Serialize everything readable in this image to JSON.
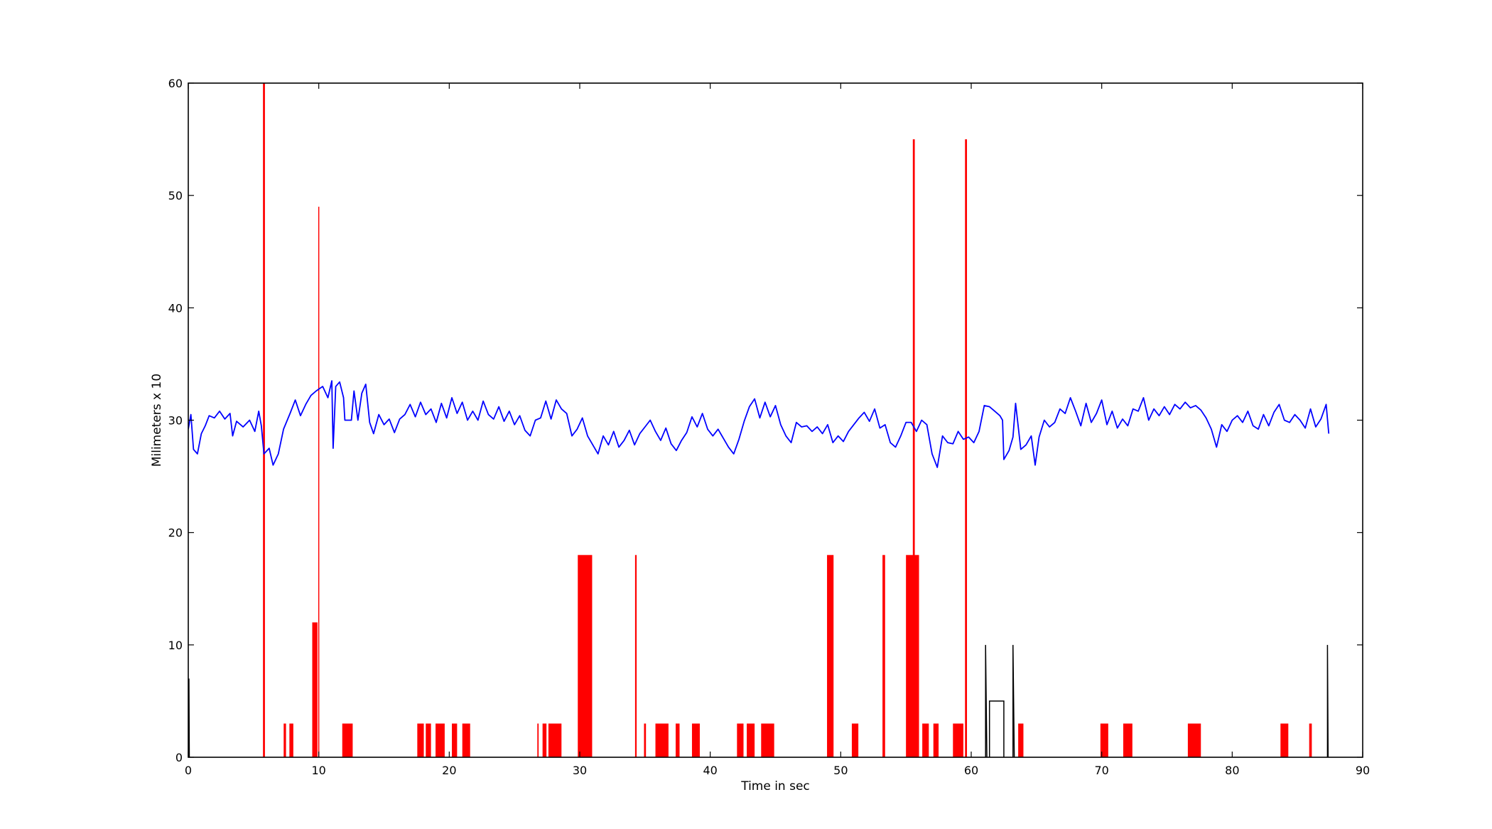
{
  "chart_data": {
    "type": "line",
    "title": "",
    "xlabel": "Time in sec",
    "ylabel": "Milimeters x 10",
    "xlim": [
      0,
      90
    ],
    "ylim": [
      0,
      60
    ],
    "xticks": [
      0,
      10,
      20,
      30,
      40,
      50,
      60,
      70,
      80,
      90
    ],
    "yticks": [
      0,
      10,
      20,
      30,
      40,
      50,
      60
    ],
    "grid": false,
    "legend": "none",
    "colors": {
      "line": "#0000ff",
      "bars": "#ff0000",
      "markers": "#000000"
    },
    "series": [
      {
        "type": "line",
        "color": "#0000ff",
        "points": [
          [
            0.0,
            29.2
          ],
          [
            0.2,
            30.5
          ],
          [
            0.4,
            27.4
          ],
          [
            0.7,
            27.0
          ],
          [
            1.0,
            28.8
          ],
          [
            1.3,
            29.5
          ],
          [
            1.6,
            30.4
          ],
          [
            2.0,
            30.2
          ],
          [
            2.4,
            30.8
          ],
          [
            2.8,
            30.1
          ],
          [
            3.2,
            30.6
          ],
          [
            3.4,
            28.6
          ],
          [
            3.7,
            29.9
          ],
          [
            4.2,
            29.4
          ],
          [
            4.7,
            30.0
          ],
          [
            5.1,
            29.0
          ],
          [
            5.4,
            30.8
          ],
          [
            5.6,
            29.5
          ],
          [
            5.8,
            27.0
          ],
          [
            6.2,
            27.5
          ],
          [
            6.5,
            26.0
          ],
          [
            6.9,
            27.0
          ],
          [
            7.3,
            29.2
          ],
          [
            7.8,
            30.6
          ],
          [
            8.2,
            31.8
          ],
          [
            8.6,
            30.4
          ],
          [
            9.0,
            31.4
          ],
          [
            9.4,
            32.2
          ],
          [
            9.8,
            32.6
          ],
          [
            10.3,
            33.0
          ],
          [
            10.7,
            32.0
          ],
          [
            11.0,
            33.5
          ],
          [
            11.1,
            27.5
          ],
          [
            11.3,
            33.0
          ],
          [
            11.6,
            33.4
          ],
          [
            11.9,
            32.0
          ],
          [
            12.0,
            30.0
          ],
          [
            12.5,
            30.0
          ],
          [
            12.7,
            32.6
          ],
          [
            13.0,
            30.0
          ],
          [
            13.3,
            32.4
          ],
          [
            13.6,
            33.2
          ],
          [
            13.9,
            29.8
          ],
          [
            14.2,
            28.8
          ],
          [
            14.6,
            30.5
          ],
          [
            15.0,
            29.6
          ],
          [
            15.4,
            30.1
          ],
          [
            15.8,
            28.9
          ],
          [
            16.2,
            30.1
          ],
          [
            16.6,
            30.5
          ],
          [
            17.0,
            31.4
          ],
          [
            17.4,
            30.3
          ],
          [
            17.8,
            31.6
          ],
          [
            18.2,
            30.5
          ],
          [
            18.6,
            31.0
          ],
          [
            19.0,
            29.8
          ],
          [
            19.4,
            31.5
          ],
          [
            19.8,
            30.2
          ],
          [
            20.2,
            32.0
          ],
          [
            20.6,
            30.6
          ],
          [
            21.0,
            31.6
          ],
          [
            21.4,
            30.0
          ],
          [
            21.8,
            30.8
          ],
          [
            22.2,
            30.0
          ],
          [
            22.6,
            31.7
          ],
          [
            23.0,
            30.5
          ],
          [
            23.4,
            30.1
          ],
          [
            23.8,
            31.2
          ],
          [
            24.2,
            29.9
          ],
          [
            24.6,
            30.8
          ],
          [
            25.0,
            29.6
          ],
          [
            25.4,
            30.4
          ],
          [
            25.8,
            29.1
          ],
          [
            26.2,
            28.6
          ],
          [
            26.6,
            30.0
          ],
          [
            27.0,
            30.2
          ],
          [
            27.4,
            31.7
          ],
          [
            27.8,
            30.1
          ],
          [
            28.2,
            31.8
          ],
          [
            28.6,
            31.0
          ],
          [
            29.0,
            30.6
          ],
          [
            29.4,
            28.6
          ],
          [
            29.8,
            29.2
          ],
          [
            30.2,
            30.2
          ],
          [
            30.6,
            28.6
          ],
          [
            31.0,
            27.8
          ],
          [
            31.4,
            27.0
          ],
          [
            31.8,
            28.6
          ],
          [
            32.2,
            27.8
          ],
          [
            32.6,
            29.0
          ],
          [
            33.0,
            27.6
          ],
          [
            33.4,
            28.2
          ],
          [
            33.8,
            29.1
          ],
          [
            34.2,
            27.8
          ],
          [
            34.6,
            28.8
          ],
          [
            35.0,
            29.4
          ],
          [
            35.4,
            30.0
          ],
          [
            35.8,
            29.0
          ],
          [
            36.2,
            28.2
          ],
          [
            36.6,
            29.3
          ],
          [
            37.0,
            27.9
          ],
          [
            37.4,
            27.3
          ],
          [
            37.8,
            28.2
          ],
          [
            38.2,
            28.9
          ],
          [
            38.6,
            30.3
          ],
          [
            39.0,
            29.4
          ],
          [
            39.4,
            30.6
          ],
          [
            39.8,
            29.2
          ],
          [
            40.2,
            28.6
          ],
          [
            40.6,
            29.2
          ],
          [
            41.0,
            28.4
          ],
          [
            41.4,
            27.6
          ],
          [
            41.8,
            27.0
          ],
          [
            42.2,
            28.3
          ],
          [
            42.6,
            29.9
          ],
          [
            43.0,
            31.2
          ],
          [
            43.4,
            31.9
          ],
          [
            43.8,
            30.2
          ],
          [
            44.2,
            31.6
          ],
          [
            44.6,
            30.3
          ],
          [
            45.0,
            31.3
          ],
          [
            45.4,
            29.6
          ],
          [
            45.8,
            28.6
          ],
          [
            46.2,
            28.0
          ],
          [
            46.6,
            29.8
          ],
          [
            47.0,
            29.4
          ],
          [
            47.4,
            29.5
          ],
          [
            47.8,
            29.0
          ],
          [
            48.2,
            29.4
          ],
          [
            48.6,
            28.8
          ],
          [
            49.0,
            29.6
          ],
          [
            49.4,
            28.0
          ],
          [
            49.8,
            28.6
          ],
          [
            50.2,
            28.1
          ],
          [
            50.6,
            29.0
          ],
          [
            51.0,
            29.6
          ],
          [
            51.4,
            30.2
          ],
          [
            51.8,
            30.7
          ],
          [
            52.2,
            29.9
          ],
          [
            52.6,
            31.0
          ],
          [
            53.0,
            29.3
          ],
          [
            53.4,
            29.6
          ],
          [
            53.8,
            28.0
          ],
          [
            54.2,
            27.6
          ],
          [
            54.6,
            28.6
          ],
          [
            55.0,
            29.8
          ],
          [
            55.4,
            29.8
          ],
          [
            55.8,
            29.0
          ],
          [
            56.2,
            30.0
          ],
          [
            56.6,
            29.6
          ],
          [
            57.0,
            27.0
          ],
          [
            57.4,
            25.8
          ],
          [
            57.8,
            28.6
          ],
          [
            58.2,
            28.0
          ],
          [
            58.6,
            27.9
          ],
          [
            59.0,
            29.0
          ],
          [
            59.4,
            28.3
          ],
          [
            59.8,
            28.5
          ],
          [
            60.2,
            28.0
          ],
          [
            60.6,
            29.0
          ],
          [
            61.0,
            31.3
          ],
          [
            61.4,
            31.2
          ],
          [
            61.8,
            30.8
          ],
          [
            62.2,
            30.4
          ],
          [
            62.4,
            30.0
          ],
          [
            62.5,
            26.5
          ],
          [
            62.9,
            27.3
          ],
          [
            63.2,
            28.5
          ],
          [
            63.4,
            31.5
          ],
          [
            63.8,
            27.4
          ],
          [
            64.2,
            27.8
          ],
          [
            64.6,
            28.6
          ],
          [
            64.9,
            26.0
          ],
          [
            65.2,
            28.5
          ],
          [
            65.6,
            30.0
          ],
          [
            66.0,
            29.4
          ],
          [
            66.4,
            29.8
          ],
          [
            66.8,
            31.0
          ],
          [
            67.2,
            30.6
          ],
          [
            67.6,
            32.0
          ],
          [
            68.0,
            30.8
          ],
          [
            68.4,
            29.5
          ],
          [
            68.8,
            31.5
          ],
          [
            69.2,
            29.8
          ],
          [
            69.6,
            30.6
          ],
          [
            70.0,
            31.8
          ],
          [
            70.4,
            29.6
          ],
          [
            70.8,
            30.8
          ],
          [
            71.2,
            29.3
          ],
          [
            71.6,
            30.1
          ],
          [
            72.0,
            29.5
          ],
          [
            72.4,
            31.0
          ],
          [
            72.8,
            30.8
          ],
          [
            73.2,
            32.0
          ],
          [
            73.6,
            30.0
          ],
          [
            74.0,
            31.0
          ],
          [
            74.4,
            30.4
          ],
          [
            74.8,
            31.2
          ],
          [
            75.2,
            30.5
          ],
          [
            75.6,
            31.4
          ],
          [
            76.0,
            31.0
          ],
          [
            76.4,
            31.6
          ],
          [
            76.8,
            31.1
          ],
          [
            77.2,
            31.3
          ],
          [
            77.6,
            30.9
          ],
          [
            78.0,
            30.2
          ],
          [
            78.4,
            29.2
          ],
          [
            78.8,
            27.6
          ],
          [
            79.2,
            29.6
          ],
          [
            79.6,
            29.0
          ],
          [
            80.0,
            30.0
          ],
          [
            80.4,
            30.4
          ],
          [
            80.8,
            29.8
          ],
          [
            81.2,
            30.8
          ],
          [
            81.6,
            29.5
          ],
          [
            82.0,
            29.2
          ],
          [
            82.4,
            30.5
          ],
          [
            82.8,
            29.5
          ],
          [
            83.2,
            30.7
          ],
          [
            83.6,
            31.4
          ],
          [
            84.0,
            30.0
          ],
          [
            84.4,
            29.8
          ],
          [
            84.8,
            30.5
          ],
          [
            85.2,
            30.0
          ],
          [
            85.6,
            29.3
          ],
          [
            86.0,
            31.0
          ],
          [
            86.4,
            29.4
          ],
          [
            86.8,
            30.1
          ],
          [
            87.2,
            31.4
          ],
          [
            87.4,
            28.8
          ]
        ]
      },
      {
        "type": "bar",
        "color": "#ff0000",
        "bars": [
          {
            "x": 5.8,
            "value": 60,
            "width": 0.15
          },
          {
            "x": 7.4,
            "value": 3,
            "width": 0.18
          },
          {
            "x": 7.9,
            "value": 3,
            "width": 0.3
          },
          {
            "x": 9.7,
            "value": 12,
            "width": 0.4
          },
          {
            "x": 10.0,
            "value": 49,
            "width": 0.08
          },
          {
            "x": 12.2,
            "value": 3,
            "width": 0.8
          },
          {
            "x": 17.8,
            "value": 3,
            "width": 0.5
          },
          {
            "x": 18.4,
            "value": 3,
            "width": 0.4
          },
          {
            "x": 19.3,
            "value": 3,
            "width": 0.7
          },
          {
            "x": 20.4,
            "value": 3,
            "width": 0.4
          },
          {
            "x": 21.3,
            "value": 3,
            "width": 0.6
          },
          {
            "x": 26.8,
            "value": 3,
            "width": 0.1
          },
          {
            "x": 27.3,
            "value": 3,
            "width": 0.3
          },
          {
            "x": 28.1,
            "value": 3,
            "width": 1.0
          },
          {
            "x": 30.4,
            "value": 18,
            "width": 1.1
          },
          {
            "x": 34.3,
            "value": 18,
            "width": 0.12
          },
          {
            "x": 35.0,
            "value": 3,
            "width": 0.15
          },
          {
            "x": 36.3,
            "value": 3,
            "width": 1.0
          },
          {
            "x": 37.5,
            "value": 3,
            "width": 0.3
          },
          {
            "x": 38.9,
            "value": 3,
            "width": 0.6
          },
          {
            "x": 42.3,
            "value": 3,
            "width": 0.5
          },
          {
            "x": 43.1,
            "value": 3,
            "width": 0.6
          },
          {
            "x": 44.4,
            "value": 3,
            "width": 1.0
          },
          {
            "x": 49.2,
            "value": 18,
            "width": 0.5
          },
          {
            "x": 51.1,
            "value": 3,
            "width": 0.5
          },
          {
            "x": 53.3,
            "value": 18,
            "width": 0.2
          },
          {
            "x": 55.5,
            "value": 18,
            "width": 1.0
          },
          {
            "x": 55.6,
            "value": 55,
            "width": 0.15
          },
          {
            "x": 56.5,
            "value": 3,
            "width": 0.5
          },
          {
            "x": 57.3,
            "value": 3,
            "width": 0.4
          },
          {
            "x": 59.0,
            "value": 3,
            "width": 0.8
          },
          {
            "x": 59.6,
            "value": 55,
            "width": 0.15
          },
          {
            "x": 63.8,
            "value": 3,
            "width": 0.4
          },
          {
            "x": 70.2,
            "value": 3,
            "width": 0.6
          },
          {
            "x": 72.0,
            "value": 3,
            "width": 0.7
          },
          {
            "x": 77.1,
            "value": 3,
            "width": 1.0
          },
          {
            "x": 84.0,
            "value": 3,
            "width": 0.6
          },
          {
            "x": 86.0,
            "value": 3,
            "width": 0.2
          }
        ]
      },
      {
        "type": "line",
        "color": "#000000",
        "segments": [
          [
            [
              0.05,
              0
            ],
            [
              0.05,
              7
            ],
            [
              0.08,
              0
            ]
          ],
          [
            [
              61.1,
              0
            ],
            [
              61.1,
              10
            ],
            [
              61.2,
              0
            ]
          ],
          [
            [
              61.4,
              0
            ],
            [
              61.4,
              5
            ],
            [
              62.5,
              5
            ],
            [
              62.5,
              0
            ]
          ],
          [
            [
              63.2,
              0
            ],
            [
              63.2,
              10
            ],
            [
              63.3,
              0
            ]
          ],
          [
            [
              87.3,
              0
            ],
            [
              87.3,
              10
            ],
            [
              87.35,
              0
            ]
          ]
        ]
      }
    ]
  }
}
